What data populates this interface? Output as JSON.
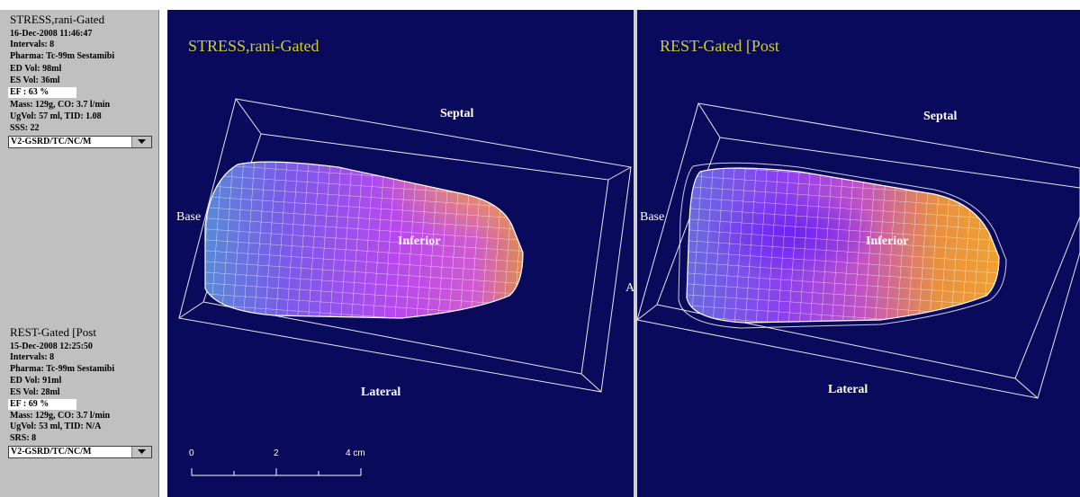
{
  "stress": {
    "title": "STRESS,rani-Gated",
    "date": "16-Dec-2008 11:46:47",
    "intervals": "Intervals: 8",
    "pharma": "Pharma: Tc-99m Sestamibi",
    "ed_vol": "ED Vol:   98ml",
    "es_vol": "ES Vol:   36ml",
    "ef": "EF   : 63 %",
    "mass": "Mass: 129g, CO: 3.7 l/min",
    "ugvol": "UgVol:   57 ml,   TID: 1.08",
    "score": "SSS: 22",
    "select_value": "V2-GSRD/TC/NC/M"
  },
  "rest": {
    "title": "REST-Gated [Post",
    "date": "15-Dec-2008 12:25:50",
    "intervals": "Intervals: 8",
    "pharma": "Pharma: Tc-99m Sestamibi",
    "ed_vol": "ED Vol:   91ml",
    "es_vol": "ES Vol:   28ml",
    "ef": "EF   : 69 %",
    "mass": "Mass: 129g, CO: 3.7 l/min",
    "ugvol": "UgVol:   53 ml,   TID: N/A",
    "score": "SRS: 8",
    "select_value": "V2-GSRD/TC/NC/M"
  },
  "panels": {
    "stress": {
      "title": "STRESS,rani-Gated",
      "septal": "Septal",
      "inferior": "Inferior",
      "lateral": "Lateral",
      "base": "Base",
      "apex_fragment": "A"
    },
    "rest": {
      "title": "REST-Gated [Post",
      "septal": "Septal",
      "inferior": "Inferior",
      "lateral": "Lateral",
      "base": "Base"
    }
  },
  "scale": {
    "t0": "0",
    "t2": "2",
    "t4": "4 cm"
  },
  "colors": {
    "panel_bg": "#0a0a5c",
    "title_yellow": "#cccc33",
    "sidebar_gray": "#c0c0c0"
  },
  "icons": {
    "dropdown": "chevron-down-icon"
  }
}
